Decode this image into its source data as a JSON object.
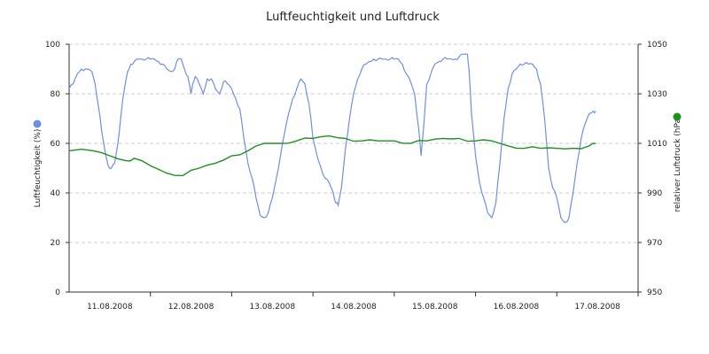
{
  "chart_data": {
    "type": "line",
    "title": "Luftfeuchtigkeit und Luftdruck",
    "x_tick_labels": [
      "11.08.2008",
      "12.08.2008",
      "13.08.2008",
      "14.08.2008",
      "15.08.2008",
      "16.08.2008",
      "17.08.2008"
    ],
    "x_range_days": [
      0,
      7
    ],
    "y_left": {
      "label": "Luftfeuchtigkeit (%)",
      "range": [
        0,
        100
      ],
      "ticks": [
        "0",
        "20",
        "40",
        "60",
        "80",
        "100"
      ]
    },
    "y_right": {
      "label": "relativer Luftdruck (hPa)",
      "range": [
        950,
        1050
      ],
      "ticks": [
        "950",
        "970",
        "990",
        "1010",
        "1030",
        "1050"
      ]
    },
    "grid": {
      "horizontal": true,
      "style": "dashed"
    },
    "series": [
      {
        "axis": "left",
        "color": "#6f8fe0",
        "points": [
          [
            0.0,
            82
          ],
          [
            0.05,
            84
          ],
          [
            0.1,
            88
          ],
          [
            0.15,
            90
          ],
          [
            0.2,
            90
          ],
          [
            0.28,
            89
          ],
          [
            0.32,
            84
          ],
          [
            0.36,
            75
          ],
          [
            0.4,
            65
          ],
          [
            0.44,
            57
          ],
          [
            0.48,
            51
          ],
          [
            0.52,
            50
          ],
          [
            0.56,
            52
          ],
          [
            0.6,
            60
          ],
          [
            0.64,
            72
          ],
          [
            0.68,
            82
          ],
          [
            0.72,
            89
          ],
          [
            0.76,
            92
          ],
          [
            0.8,
            93
          ],
          [
            0.85,
            94
          ],
          [
            0.9,
            94
          ],
          [
            0.95,
            94
          ],
          [
            1.0,
            94
          ],
          [
            1.05,
            94
          ],
          [
            1.1,
            93
          ],
          [
            1.15,
            92
          ],
          [
            1.2,
            90
          ],
          [
            1.25,
            89
          ],
          [
            1.3,
            90
          ],
          [
            1.34,
            94
          ],
          [
            1.38,
            94
          ],
          [
            1.42,
            90
          ],
          [
            1.46,
            87
          ],
          [
            1.5,
            80
          ],
          [
            1.52,
            84
          ],
          [
            1.55,
            87
          ],
          [
            1.6,
            84
          ],
          [
            1.65,
            80
          ],
          [
            1.7,
            86
          ],
          [
            1.75,
            86
          ],
          [
            1.8,
            82
          ],
          [
            1.85,
            80
          ],
          [
            1.9,
            85
          ],
          [
            1.95,
            84
          ],
          [
            2.0,
            82
          ],
          [
            2.05,
            78
          ],
          [
            2.1,
            74
          ],
          [
            2.15,
            62
          ],
          [
            2.2,
            52
          ],
          [
            2.25,
            46
          ],
          [
            2.3,
            38
          ],
          [
            2.35,
            31
          ],
          [
            2.4,
            30
          ],
          [
            2.45,
            32
          ],
          [
            2.5,
            38
          ],
          [
            2.55,
            46
          ],
          [
            2.6,
            55
          ],
          [
            2.65,
            64
          ],
          [
            2.7,
            72
          ],
          [
            2.75,
            78
          ],
          [
            2.8,
            82
          ],
          [
            2.85,
            86
          ],
          [
            2.9,
            84
          ],
          [
            2.95,
            76
          ],
          [
            3.0,
            62
          ],
          [
            3.05,
            55
          ],
          [
            3.1,
            50
          ],
          [
            3.15,
            46
          ],
          [
            3.2,
            44
          ],
          [
            3.25,
            40
          ],
          [
            3.28,
            36
          ],
          [
            3.31,
            35
          ],
          [
            3.35,
            42
          ],
          [
            3.4,
            58
          ],
          [
            3.45,
            70
          ],
          [
            3.5,
            80
          ],
          [
            3.55,
            86
          ],
          [
            3.6,
            90
          ],
          [
            3.65,
            92
          ],
          [
            3.7,
            93
          ],
          [
            3.75,
            94
          ],
          [
            3.8,
            94
          ],
          [
            3.85,
            94
          ],
          [
            3.9,
            94
          ],
          [
            3.95,
            94
          ],
          [
            4.0,
            94
          ],
          [
            4.05,
            94
          ],
          [
            4.1,
            92
          ],
          [
            4.15,
            88
          ],
          [
            4.2,
            85
          ],
          [
            4.25,
            80
          ],
          [
            4.3,
            66
          ],
          [
            4.33,
            55
          ],
          [
            4.36,
            66
          ],
          [
            4.4,
            84
          ],
          [
            4.45,
            88
          ],
          [
            4.5,
            92
          ],
          [
            4.55,
            93
          ],
          [
            4.6,
            94
          ],
          [
            4.65,
            94
          ],
          [
            4.7,
            94
          ],
          [
            4.75,
            94
          ],
          [
            4.8,
            95
          ],
          [
            4.85,
            96
          ],
          [
            4.9,
            96
          ],
          [
            4.92,
            90
          ],
          [
            4.95,
            72
          ],
          [
            5.0,
            55
          ],
          [
            5.05,
            44
          ],
          [
            5.1,
            38
          ],
          [
            5.15,
            32
          ],
          [
            5.2,
            30
          ],
          [
            5.25,
            36
          ],
          [
            5.3,
            52
          ],
          [
            5.35,
            70
          ],
          [
            5.4,
            82
          ],
          [
            5.45,
            88
          ],
          [
            5.5,
            90
          ],
          [
            5.55,
            92
          ],
          [
            5.6,
            92
          ],
          [
            5.65,
            92
          ],
          [
            5.7,
            92
          ],
          [
            5.75,
            90
          ],
          [
            5.8,
            84
          ],
          [
            5.85,
            70
          ],
          [
            5.9,
            50
          ],
          [
            5.95,
            42
          ],
          [
            6.0,
            38
          ],
          [
            6.05,
            30
          ],
          [
            6.1,
            28
          ],
          [
            6.15,
            30
          ],
          [
            6.2,
            40
          ],
          [
            6.25,
            52
          ],
          [
            6.3,
            62
          ],
          [
            6.35,
            68
          ],
          [
            6.4,
            72
          ],
          [
            6.45,
            73
          ],
          [
            6.48,
            73
          ]
        ]
      },
      {
        "axis": "right",
        "color": "#1f8f1f",
        "points": [
          [
            0.0,
            1007
          ],
          [
            0.3,
            1007
          ],
          [
            0.5,
            1005
          ],
          [
            0.7,
            1003
          ],
          [
            0.8,
            1004
          ],
          [
            1.0,
            1001
          ],
          [
            1.2,
            998
          ],
          [
            1.4,
            997
          ],
          [
            1.6,
            1000
          ],
          [
            1.8,
            1002
          ],
          [
            2.0,
            1005
          ],
          [
            2.2,
            1007
          ],
          [
            2.4,
            1010
          ],
          [
            2.6,
            1010
          ],
          [
            2.8,
            1011
          ],
          [
            3.0,
            1012
          ],
          [
            3.2,
            1013
          ],
          [
            3.4,
            1012
          ],
          [
            3.6,
            1011
          ],
          [
            3.8,
            1011
          ],
          [
            4.0,
            1011
          ],
          [
            4.2,
            1010
          ],
          [
            4.4,
            1011
          ],
          [
            4.6,
            1012
          ],
          [
            4.8,
            1012
          ],
          [
            5.0,
            1011
          ],
          [
            5.2,
            1011
          ],
          [
            5.4,
            1009
          ],
          [
            5.6,
            1008
          ],
          [
            5.8,
            1008
          ],
          [
            6.0,
            1008
          ],
          [
            6.2,
            1008
          ],
          [
            6.4,
            1009
          ],
          [
            6.48,
            1010
          ]
        ]
      }
    ]
  }
}
